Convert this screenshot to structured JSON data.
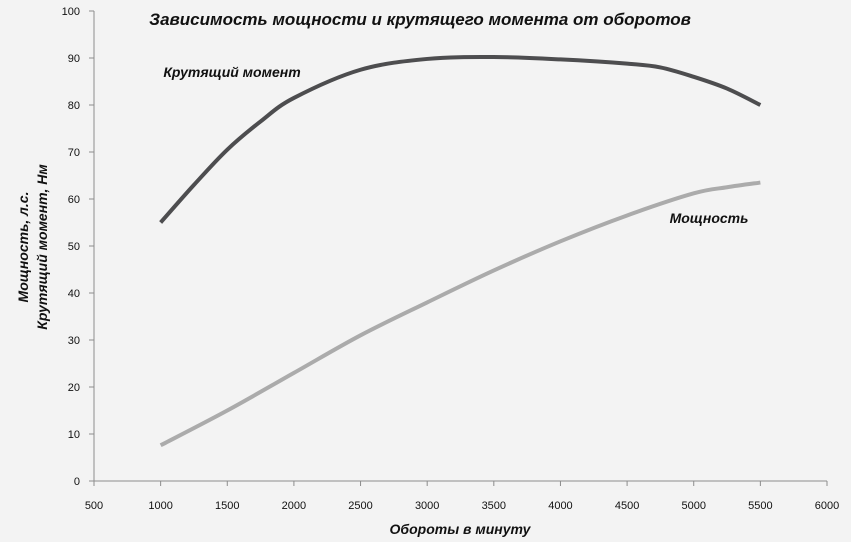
{
  "chart_data": {
    "type": "line",
    "title": "Зависимость мощности и крутящего момента от оборотов",
    "xlabel": "Обороты в минуту",
    "ylabel_lines": [
      "Мощность, л.с.",
      "Крутящий момент, Нм"
    ],
    "xlim": [
      500,
      6000
    ],
    "ylim": [
      0,
      100
    ],
    "x_ticks": [
      500,
      1000,
      1500,
      2000,
      2500,
      3000,
      3500,
      4000,
      4500,
      5000,
      5500,
      6000
    ],
    "y_ticks": [
      0,
      10,
      20,
      30,
      40,
      50,
      60,
      70,
      80,
      90,
      100
    ],
    "grid": false,
    "legend": "none",
    "series": [
      {
        "name": "Крутящий момент",
        "color": "#4d4d4f",
        "x": [
          1000,
          1250,
          1500,
          1750,
          2000,
          2500,
          3000,
          3500,
          4000,
          4500,
          4750,
          5000,
          5250,
          5500
        ],
        "values": [
          55,
          63,
          70.5,
          76.5,
          81.5,
          87.5,
          89.8,
          90.2,
          89.7,
          88.8,
          88,
          86,
          83.5,
          80
        ]
      },
      {
        "name": "Мощность",
        "color": "#ababab",
        "x": [
          1000,
          1500,
          2000,
          2500,
          3000,
          3500,
          4000,
          4500,
          5000,
          5250,
          5500
        ],
        "values": [
          7.6,
          15,
          23,
          31,
          38,
          44.8,
          51,
          56.5,
          61.2,
          62.5,
          63.5
        ]
      }
    ]
  }
}
